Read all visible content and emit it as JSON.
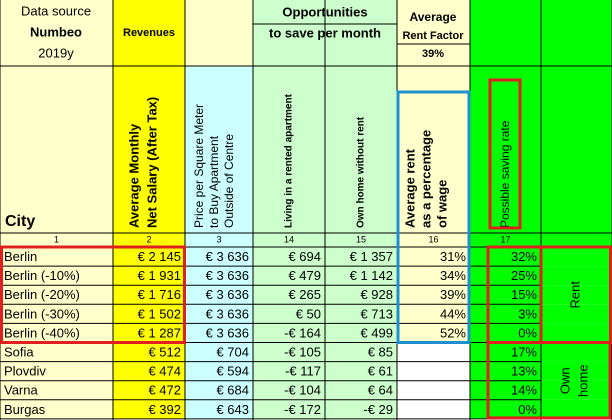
{
  "header": {
    "data_source": "Data source",
    "source_name": "Numbeo",
    "year": "2019y",
    "city": "City",
    "revenues": "Revenues",
    "opportunities": "Opportunities",
    "to_save": "to save per month",
    "average": "Average",
    "rent_factor": "Rent Factor",
    "rent_factor_value": "39%"
  },
  "columns": [
    {
      "index": "1"
    },
    {
      "index": "2",
      "lines": [
        "Average Monthly",
        "Net Salary (After Tax)"
      ]
    },
    {
      "index": "3",
      "lines": [
        "Price per Square Meter",
        "to Buy Apartment",
        "Outside of Centre"
      ]
    },
    {
      "index": "14",
      "lines": [
        "Living in a rented apartment"
      ]
    },
    {
      "index": "15",
      "lines": [
        "Own home without rent"
      ]
    },
    {
      "index": "16",
      "lines": [
        "Average rent",
        "as a percentage",
        "of  wage"
      ]
    },
    {
      "index": "17",
      "lines": [
        "Possible saving rate"
      ]
    }
  ],
  "rows": [
    {
      "city": "Berlin",
      "salary": "€ 2 145",
      "price": "€ 3 636",
      "rented": "€ 694",
      "own": "€ 1 357",
      "rent_pct": "31%",
      "saving": "32%"
    },
    {
      "city": "Berlin (-10%)",
      "salary": "€ 1 931",
      "price": "€ 3 636",
      "rented": "€ 479",
      "own": "€ 1 142",
      "rent_pct": "34%",
      "saving": "25%"
    },
    {
      "city": "Berlin (-20%)",
      "salary": "€ 1 716",
      "price": "€ 3 636",
      "rented": "€ 265",
      "own": "€ 928",
      "rent_pct": "39%",
      "saving": "15%"
    },
    {
      "city": "Berlin (-30%)",
      "salary": "€ 1 502",
      "price": "€ 3 636",
      "rented": "€ 50",
      "own": "€ 713",
      "rent_pct": "44%",
      "saving": "3%"
    },
    {
      "city": "Berlin (-40%)",
      "salary": "€ 1 287",
      "price": "€ 3 636",
      "rented": "-€ 164",
      "own": "€ 499",
      "rent_pct": "52%",
      "saving": "0%"
    },
    {
      "city": "Sofia",
      "salary": "€ 512",
      "price": "€ 704",
      "rented": "-€ 105",
      "own": "€ 85",
      "saving": "17%"
    },
    {
      "city": "Plovdiv",
      "salary": "€ 474",
      "price": "€ 594",
      "rented": "-€ 117",
      "own": "€ 61",
      "saving": "13%"
    },
    {
      "city": "Varna",
      "salary": "€ 472",
      "price": "€ 684",
      "rented": "-€ 104",
      "own": "€ 64",
      "saving": "14%"
    },
    {
      "city": "Burgas",
      "salary": "€ 392",
      "price": "€ 643",
      "rented": "-€ 172",
      "own": "-€ 29",
      "saving": "0%"
    }
  ],
  "labels": {
    "rent": "Rent",
    "own_home": [
      "Own",
      "home"
    ]
  }
}
